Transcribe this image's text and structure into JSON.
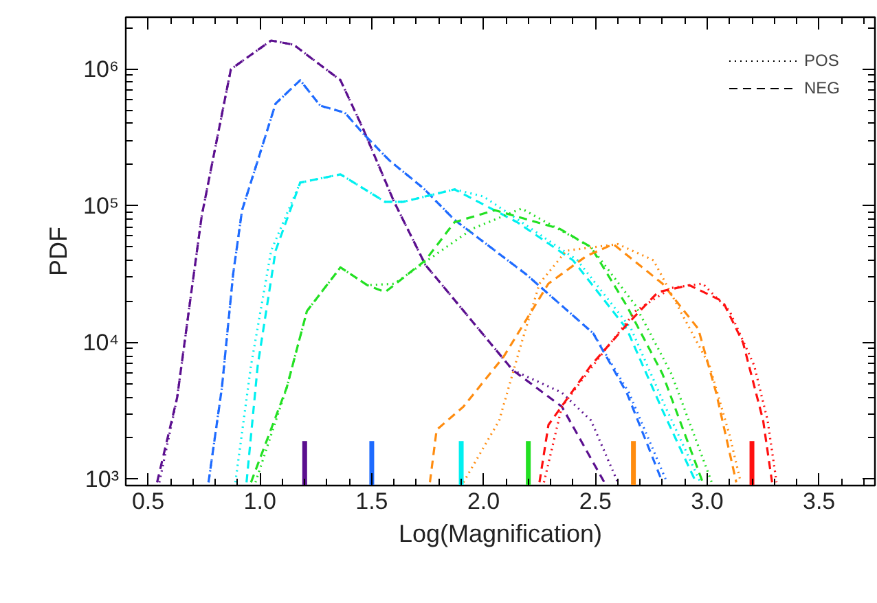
{
  "chart_data": {
    "type": "line",
    "xlabel": "Log(Magnification)",
    "ylabel": "PDF",
    "log": "y",
    "xlim": [
      0.4,
      3.75
    ],
    "ylim": [
      900,
      2400000
    ],
    "xticks": [
      {
        "value": 0.5,
        "label": "0.5"
      },
      {
        "value": 1.0,
        "label": "1.0"
      },
      {
        "value": 1.5,
        "label": "1.5"
      },
      {
        "value": 2.0,
        "label": "2.0"
      },
      {
        "value": 2.5,
        "label": "2.5"
      },
      {
        "value": 3.0,
        "label": "3.0"
      },
      {
        "value": 3.5,
        "label": "3.5"
      }
    ],
    "yticks": [
      {
        "value": 1000,
        "label": "10³"
      },
      {
        "value": 10000,
        "label": "10⁴"
      },
      {
        "value": 100000,
        "label": "10⁵"
      },
      {
        "value": 1000000,
        "label": "10⁶"
      }
    ],
    "grid": false,
    "marker": "none",
    "annotations": [
      "POS",
      "NEG"
    ],
    "series": [
      {
        "line_style": "dotted",
        "color": "#5b0f8f",
        "x": [
          0.55,
          0.63,
          0.69,
          0.74,
          0.87,
          1.05,
          1.15,
          1.36,
          1.46,
          1.6,
          1.74,
          2.13,
          2.35,
          2.48,
          2.6
        ],
        "values": [
          950,
          3980,
          21400,
          85100,
          1000000,
          1620000,
          1510000,
          830000,
          370000,
          107000,
          37000,
          6300,
          4300,
          2700,
          950
        ]
      },
      {
        "line_style": "dashed",
        "color": "#5b0f8f",
        "x": [
          0.54,
          0.63,
          0.69,
          0.74,
          0.87,
          1.05,
          1.15,
          1.36,
          1.46,
          1.6,
          1.74,
          2.13,
          2.35,
          2.54
        ],
        "values": [
          950,
          3980,
          21400,
          85100,
          1000000,
          1620000,
          1510000,
          830000,
          370000,
          107000,
          37000,
          6300,
          3400,
          950
        ]
      },
      {
        "line_style": "dotted",
        "color": "#1e6bff",
        "x": [
          0.77,
          0.83,
          0.88,
          0.92,
          0.99,
          1.07,
          1.18,
          1.27,
          1.38,
          1.46,
          1.58,
          1.73,
          1.87,
          2.19,
          2.49,
          2.65,
          2.82
        ],
        "values": [
          950,
          4700,
          31600,
          93000,
          214000,
          560000,
          830000,
          540000,
          480000,
          340000,
          214000,
          135000,
          79000,
          31600,
          11700,
          4300,
          950
        ]
      },
      {
        "line_style": "dashed",
        "color": "#1e6bff",
        "x": [
          0.77,
          0.83,
          0.88,
          0.92,
          0.99,
          1.07,
          1.18,
          1.27,
          1.38,
          1.46,
          1.58,
          1.73,
          1.87,
          2.19,
          2.49,
          2.64,
          2.8
        ],
        "values": [
          950,
          4700,
          31600,
          93000,
          214000,
          560000,
          830000,
          540000,
          480000,
          340000,
          214000,
          135000,
          79000,
          31600,
          11700,
          4300,
          950
        ]
      },
      {
        "line_style": "dotted",
        "color": "#00f0f0",
        "x": [
          0.89,
          0.96,
          1.05,
          1.18,
          1.36,
          1.56,
          1.64,
          1.87,
          2.0,
          2.17,
          2.42,
          2.66,
          2.82,
          2.97
        ],
        "values": [
          950,
          6800,
          47000,
          148000,
          170000,
          107000,
          107000,
          132000,
          117000,
          76000,
          40000,
          12600,
          3200,
          950
        ]
      },
      {
        "line_style": "dashed",
        "color": "#00f0f0",
        "x": [
          0.94,
          0.99,
          1.07,
          1.18,
          1.36,
          1.56,
          1.64,
          1.87,
          2.15,
          2.4,
          2.64,
          2.8,
          2.95
        ],
        "values": [
          950,
          6800,
          47000,
          148000,
          170000,
          107000,
          107000,
          132000,
          76000,
          40000,
          12600,
          3200,
          950
        ]
      },
      {
        "line_style": "dotted",
        "color": "#22e022",
        "x": [
          0.98,
          1.12,
          1.21,
          1.36,
          1.48,
          1.6,
          1.95,
          2.17,
          2.48,
          2.68,
          2.84,
          3.02
        ],
        "values": [
          950,
          4700,
          17000,
          35500,
          26300,
          26900,
          68000,
          95500,
          50000,
          18600,
          5900,
          950
        ]
      },
      {
        "line_style": "dashed",
        "color": "#22e022",
        "x": [
          0.96,
          1.12,
          1.21,
          1.36,
          1.48,
          1.56,
          1.74,
          1.87,
          2.05,
          2.34,
          2.48,
          2.64,
          2.8,
          2.98
        ],
        "values": [
          950,
          4700,
          17000,
          35500,
          26300,
          23400,
          40000,
          76000,
          93000,
          68000,
          50000,
          18600,
          5900,
          950
        ]
      },
      {
        "line_style": "dotted",
        "color": "#ff8c0f",
        "x": [
          1.91,
          2.07,
          2.17,
          2.25,
          2.37,
          2.6,
          2.76,
          2.88,
          3.01,
          3.1,
          3.15
        ],
        "values": [
          950,
          2700,
          10000,
          27000,
          47000,
          52500,
          40000,
          17000,
          6800,
          2100,
          950
        ]
      },
      {
        "line_style": "dashed",
        "color": "#ff8c0f",
        "x": [
          1.76,
          1.79,
          1.91,
          2.09,
          2.29,
          2.46,
          2.58,
          2.8,
          2.96,
          3.04,
          3.13
        ],
        "values": [
          950,
          2300,
          3400,
          7900,
          27000,
          43000,
          52500,
          27000,
          12600,
          4300,
          950
        ]
      },
      {
        "line_style": "dotted",
        "color": "#ff1010",
        "x": [
          2.27,
          2.35,
          2.52,
          2.68,
          2.84,
          2.98,
          3.1,
          3.21,
          3.27,
          3.31
        ],
        "values": [
          950,
          3400,
          7900,
          17000,
          25100,
          27000,
          17000,
          6800,
          2700,
          950
        ]
      },
      {
        "line_style": "dashed",
        "color": "#ff1010",
        "x": [
          2.25,
          2.29,
          2.48,
          2.64,
          2.78,
          2.92,
          3.07,
          3.16,
          3.25,
          3.29
        ],
        "values": [
          950,
          2500,
          6800,
          13500,
          23400,
          26300,
          20000,
          10000,
          2700,
          950
        ]
      }
    ],
    "ref_lines": [
      {
        "axis": "x",
        "value": 1.2,
        "color": "#5b0f8f"
      },
      {
        "axis": "x",
        "value": 1.5,
        "color": "#1e6bff"
      },
      {
        "axis": "x",
        "value": 1.9,
        "color": "#00f0f0"
      },
      {
        "axis": "x",
        "value": 2.2,
        "color": "#22e022"
      },
      {
        "axis": "x",
        "value": 2.67,
        "color": "#ff8c0f"
      },
      {
        "axis": "x",
        "value": 3.2,
        "color": "#ff1010"
      }
    ]
  }
}
